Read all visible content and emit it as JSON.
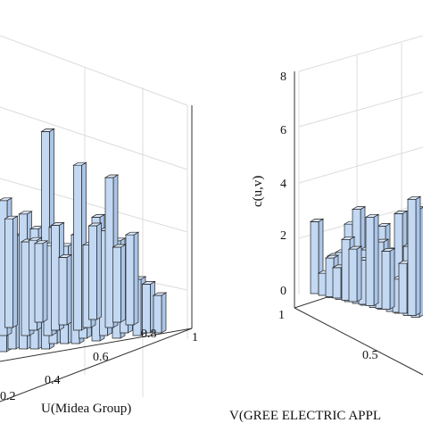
{
  "chart_data": [
    {
      "type": "bar3d",
      "panel": "left",
      "xlabel": "U(Midea Group)",
      "x_ticks": [
        "0.2",
        "0.4",
        "0.6",
        "0.8",
        "1"
      ],
      "bars": [
        {
          "u": 0.05,
          "v": 0.55,
          "c": 3.4
        },
        {
          "u": 0.1,
          "v": 0.55,
          "c": 3.0
        },
        {
          "u": 0.15,
          "v": 0.5,
          "c": 3.6
        },
        {
          "u": 0.2,
          "v": 0.45,
          "c": 3.2
        },
        {
          "u": 0.25,
          "v": 0.4,
          "c": 5.8
        },
        {
          "u": 0.3,
          "v": 0.45,
          "c": 3.1
        },
        {
          "u": 0.35,
          "v": 0.4,
          "c": 2.6
        },
        {
          "u": 0.4,
          "v": 0.35,
          "c": 2.9
        },
        {
          "u": 0.45,
          "v": 0.4,
          "c": 2.4
        },
        {
          "u": 0.5,
          "v": 0.3,
          "c": 3.3
        },
        {
          "u": 0.55,
          "v": 0.35,
          "c": 2.8
        },
        {
          "u": 0.6,
          "v": 0.25,
          "c": 2.6
        },
        {
          "u": 0.65,
          "v": 0.3,
          "c": 2.2
        },
        {
          "u": 0.7,
          "v": 0.2,
          "c": 1.5
        },
        {
          "u": 0.75,
          "v": 0.2,
          "c": 1.3
        },
        {
          "u": 0.8,
          "v": 0.15,
          "c": 1.0
        },
        {
          "u": 0.3,
          "v": 0.6,
          "c": 2.4
        },
        {
          "u": 0.45,
          "v": 0.55,
          "c": 4.4
        },
        {
          "u": 0.6,
          "v": 0.45,
          "c": 4.0
        },
        {
          "u": 0.7,
          "v": 0.4,
          "c": 2.4
        },
        {
          "u": 0.2,
          "v": 0.7,
          "c": 2.5
        },
        {
          "u": 0.35,
          "v": 0.65,
          "c": 2.8
        },
        {
          "u": 0.5,
          "v": 0.55,
          "c": 2.2
        },
        {
          "u": 0.65,
          "v": 0.5,
          "c": 2.0
        },
        {
          "u": 0.1,
          "v": 0.8,
          "c": 3.6
        },
        {
          "u": 0.25,
          "v": 0.75,
          "c": 2.4
        },
        {
          "u": 0.4,
          "v": 0.7,
          "c": 1.8
        },
        {
          "u": 0.55,
          "v": 0.65,
          "c": 2.5
        },
        {
          "u": 0.15,
          "v": 0.9,
          "c": 2.9
        },
        {
          "u": 0.3,
          "v": 0.85,
          "c": 2.1
        }
      ]
    },
    {
      "type": "bar3d",
      "panel": "right",
      "xlabel": "V(GREE ELECTRIC APPL",
      "zlabel": "c(u,v)",
      "z_ticks": [
        "0",
        "2",
        "4",
        "6",
        "8"
      ],
      "zlim": [
        0,
        8
      ],
      "y_ticks": [
        "1",
        "0.5"
      ],
      "bars": [
        {
          "u": 0.1,
          "v": 0.5,
          "c": 2.6
        },
        {
          "u": 0.15,
          "v": 0.5,
          "c": 0.8
        },
        {
          "u": 0.2,
          "v": 0.45,
          "c": 1.5
        },
        {
          "u": 0.25,
          "v": 0.45,
          "c": 1.7
        },
        {
          "u": 0.3,
          "v": 0.4,
          "c": 2.8
        },
        {
          "u": 0.35,
          "v": 0.4,
          "c": 3.4
        },
        {
          "u": 0.4,
          "v": 0.4,
          "c": 2.0
        },
        {
          "u": 0.45,
          "v": 0.35,
          "c": 2.6
        },
        {
          "u": 0.5,
          "v": 0.35,
          "c": 3.0
        },
        {
          "u": 0.55,
          "v": 0.3,
          "c": 2.2
        },
        {
          "u": 0.6,
          "v": 0.3,
          "c": 3.6
        },
        {
          "u": 0.65,
          "v": 0.25,
          "c": 2.5
        },
        {
          "u": 0.7,
          "v": 0.25,
          "c": 3.9
        },
        {
          "u": 0.2,
          "v": 0.55,
          "c": 1.4
        },
        {
          "u": 0.3,
          "v": 0.55,
          "c": 2.2
        },
        {
          "u": 0.4,
          "v": 0.5,
          "c": 1.6
        },
        {
          "u": 0.5,
          "v": 0.45,
          "c": 2.4
        },
        {
          "u": 0.6,
          "v": 0.4,
          "c": 1.2
        },
        {
          "u": 0.25,
          "v": 0.6,
          "c": 1.1
        },
        {
          "u": 0.35,
          "v": 0.6,
          "c": 1.9
        },
        {
          "u": 0.45,
          "v": 0.55,
          "c": 3.2
        },
        {
          "u": 0.55,
          "v": 0.55,
          "c": 2.1
        },
        {
          "u": 0.65,
          "v": 0.5,
          "c": 1.8
        },
        {
          "u": 0.7,
          "v": 0.45,
          "c": 4.2
        }
      ]
    }
  ]
}
